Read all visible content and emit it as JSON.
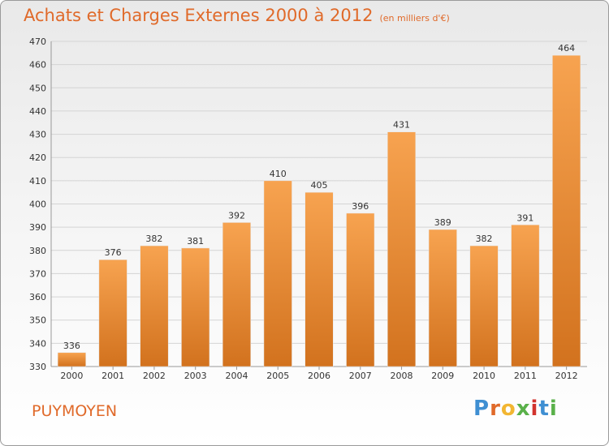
{
  "header": {
    "title": "Achats et Charges Externes 2000 à 2012",
    "subtitle": "(en milliers d'€)"
  },
  "footer": {
    "commune": "PUYMOYEN",
    "logo": "Proxiti"
  },
  "colors": {
    "accent": "#e06a2a",
    "bar_top": "#f7a350",
    "bar_bottom": "#d2721e",
    "logo_letters": [
      "#3f8fd2",
      "#e06a2a",
      "#f2b632",
      "#5ab14a",
      "#d2342f",
      "#3f8fd2",
      "#5ab14a"
    ]
  },
  "chart_data": {
    "type": "bar",
    "title": "Achats et Charges Externes 2000 à 2012",
    "subtitle": "(en milliers d'€)",
    "categories": [
      "2000",
      "2001",
      "2002",
      "2003",
      "2004",
      "2005",
      "2006",
      "2007",
      "2008",
      "2009",
      "2010",
      "2011",
      "2012"
    ],
    "values": [
      336,
      376,
      382,
      381,
      392,
      410,
      405,
      396,
      431,
      389,
      382,
      391,
      464
    ],
    "ylim": [
      330,
      470
    ],
    "yticks": [
      330,
      340,
      350,
      360,
      370,
      380,
      390,
      400,
      410,
      420,
      430,
      440,
      450,
      460,
      470
    ],
    "grid": true,
    "data_labels": true
  }
}
